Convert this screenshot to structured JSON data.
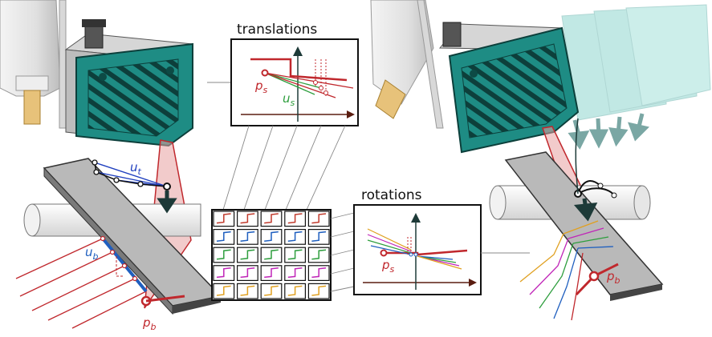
{
  "panels": {
    "translations": {
      "title": "translations"
    },
    "rotations": {
      "title": "rotations"
    }
  },
  "labels": {
    "u_t": {
      "base": "u",
      "sub": "t"
    },
    "u_b": {
      "base": "u",
      "sub": "b"
    },
    "u_s": {
      "base": "u",
      "sub": "s"
    },
    "p_s_translations": {
      "base": "p",
      "sub": "s"
    },
    "p_s_rotations": {
      "base": "p",
      "sub": "s"
    },
    "p_b_left": {
      "base": "p",
      "sub": "b"
    },
    "p_b_right": {
      "base": "p",
      "sub": "b"
    }
  },
  "grid": {
    "rows": 5,
    "cols": 5,
    "row_colors": [
      "#c0392b",
      "#1f5fbf",
      "#2e9e3e",
      "#c026b8",
      "#e0a020"
    ]
  },
  "colors": {
    "sensor_teal": "#1e8c84",
    "sensor_dark": "#0d4a45",
    "sensor_light": "#4fc0b4",
    "plate_grey": "#b9b9b9",
    "laser_red": "#c0282d",
    "arrow_dark": "#1d3a38",
    "axis_dark": "#5a1d10",
    "blue_line": "#1f3fbf"
  },
  "icons": [
    "down-arrow-icon",
    "endpoint-circle-icon"
  ]
}
